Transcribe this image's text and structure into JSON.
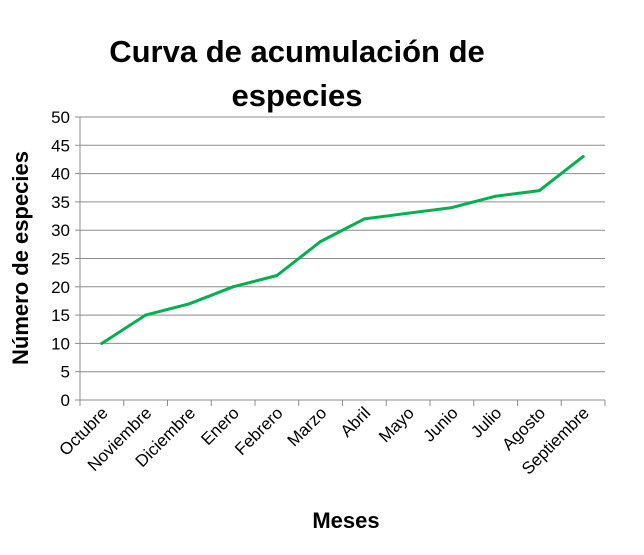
{
  "chart_data": {
    "type": "line",
    "title_lines": [
      "Curva de acumulación de",
      "especies"
    ],
    "xlabel": "Meses",
    "ylabel": "Número de especies",
    "categories": [
      "Octubre",
      "Noviembre",
      "Diciembre",
      "Enero",
      "Febrero",
      "Marzo",
      "Abril",
      "Mayo",
      "Junio",
      "Julio",
      "Agosto",
      "Septiembre"
    ],
    "series": [
      {
        "values": [
          10,
          15,
          17,
          20,
          22,
          28,
          32,
          33,
          34,
          36,
          37,
          43
        ],
        "color": "#00b050"
      }
    ],
    "ylim": [
      0,
      50
    ],
    "yticks": [
      0,
      5,
      10,
      15,
      20,
      25,
      30,
      35,
      40,
      45,
      50
    ],
    "grid": true,
    "legend": "none"
  }
}
